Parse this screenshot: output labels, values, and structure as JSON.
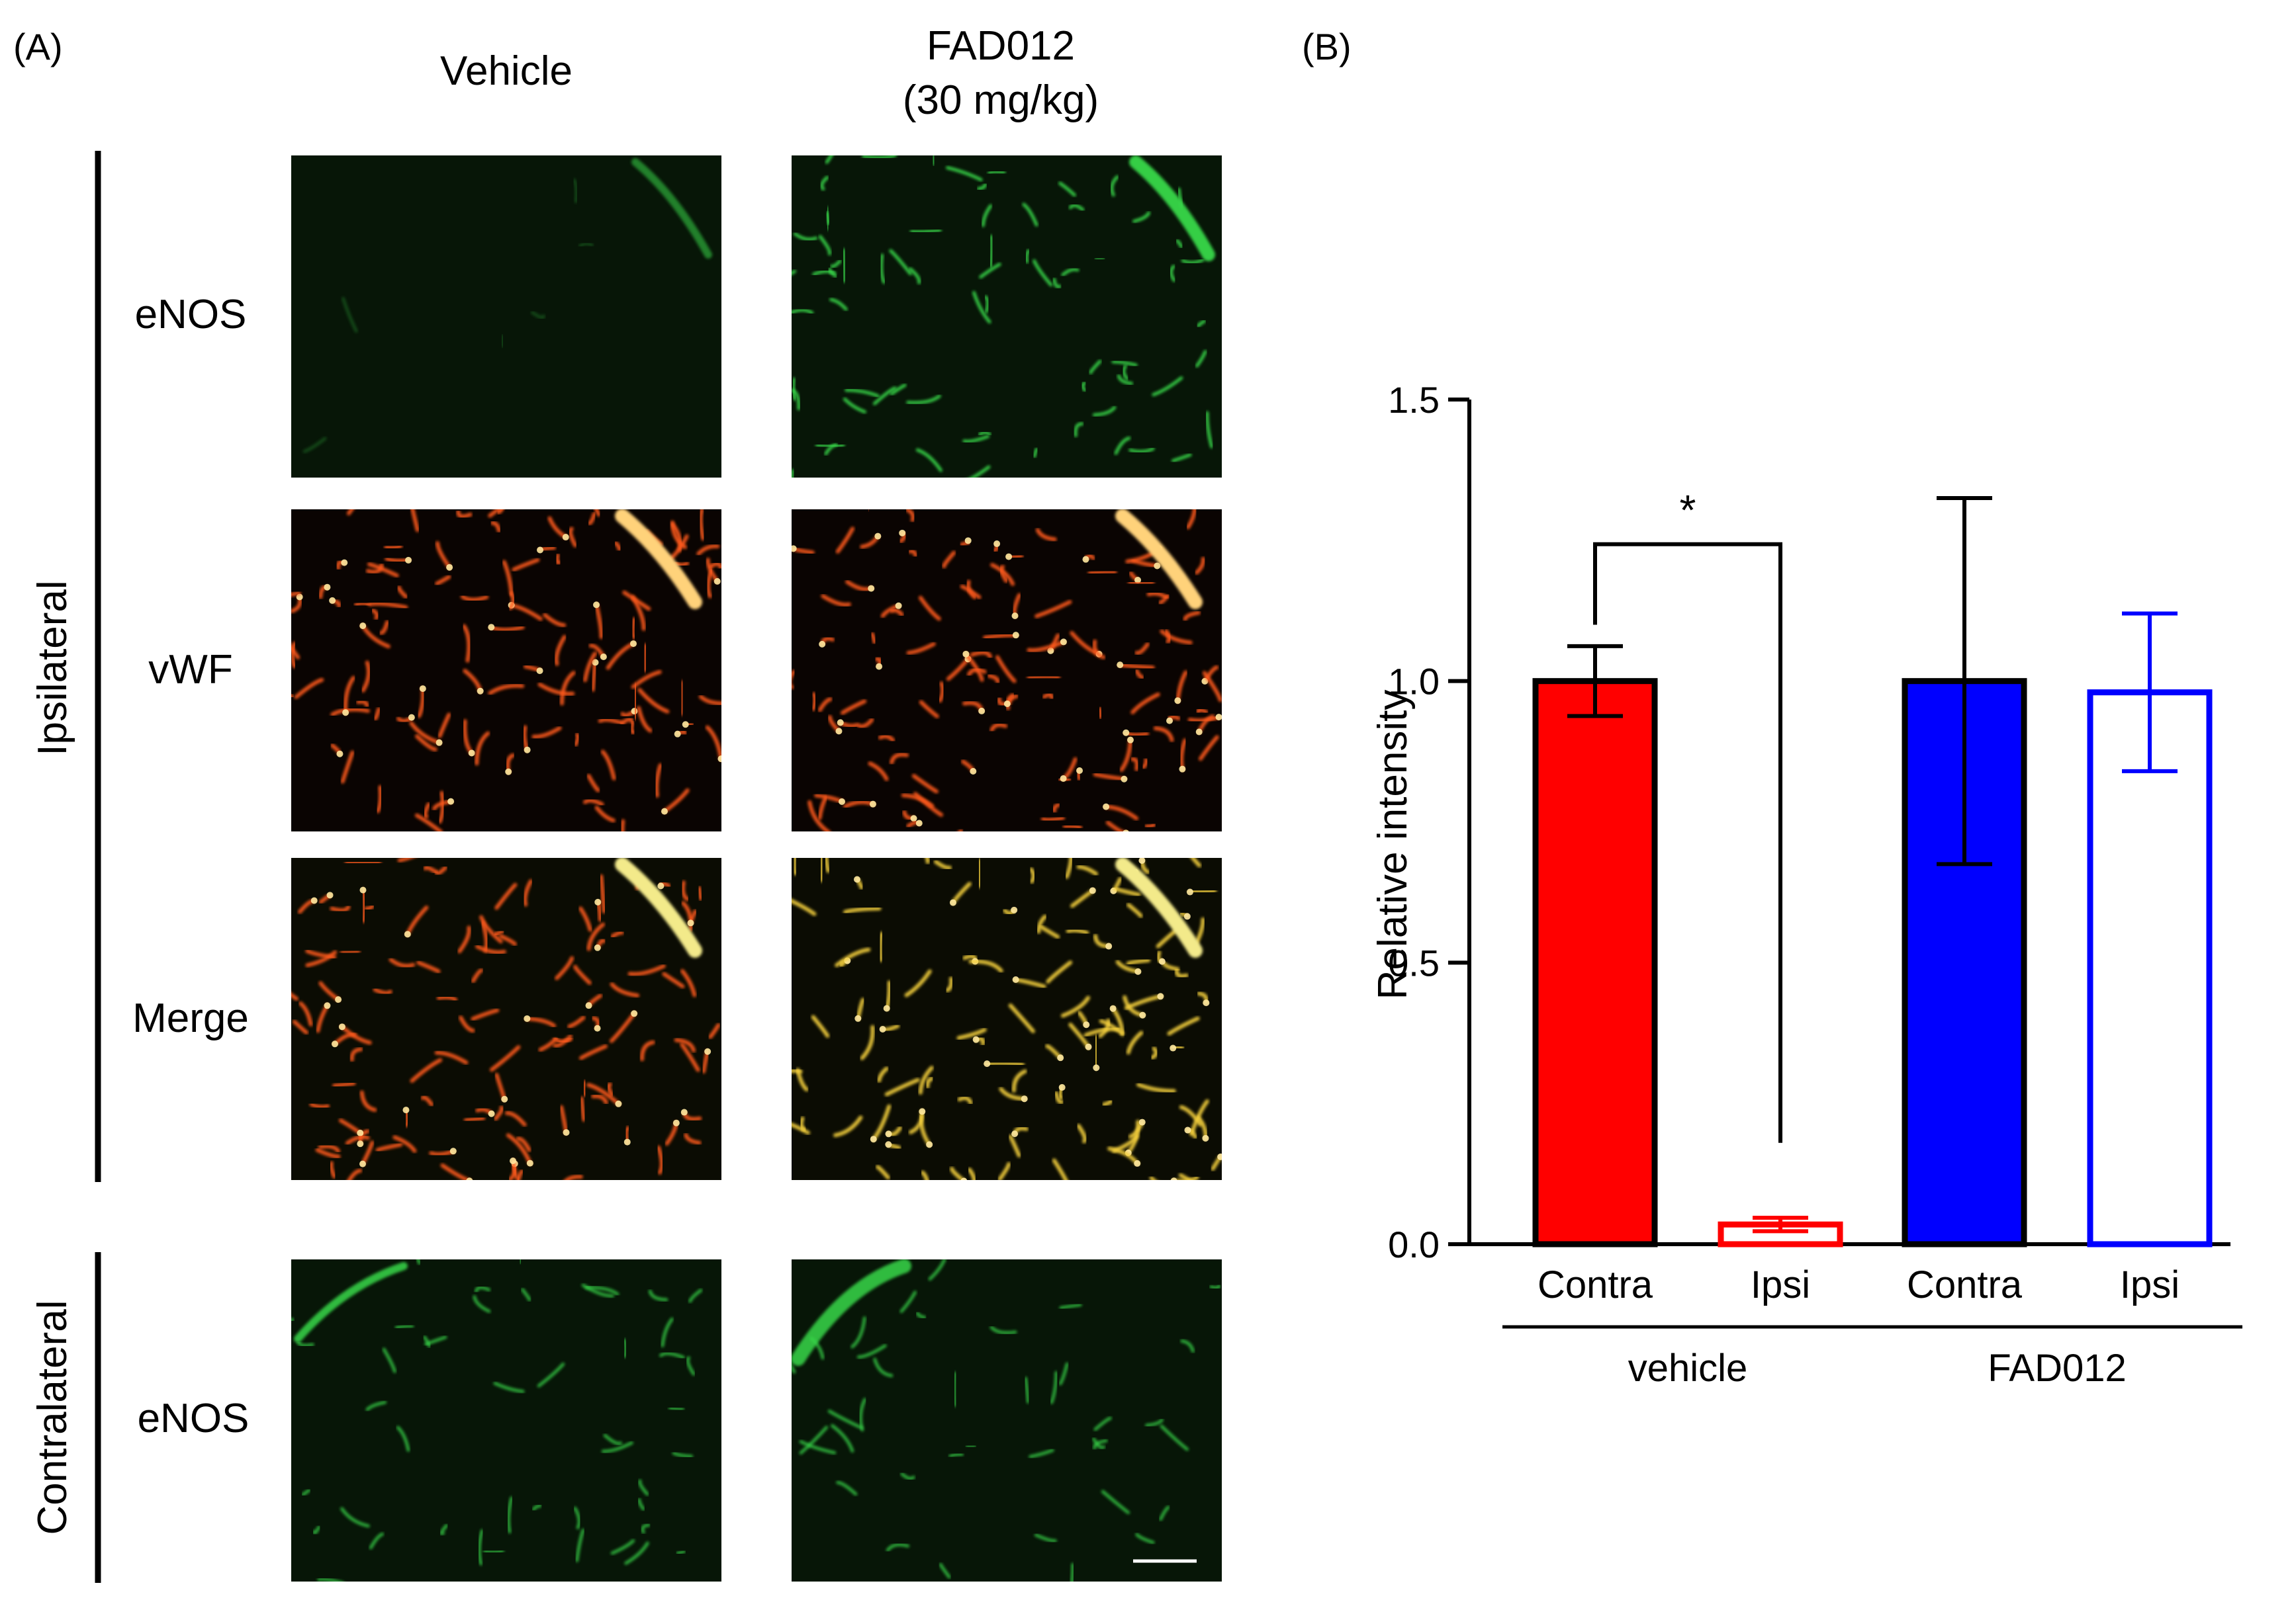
{
  "panel_a": {
    "label": "(A)",
    "columns": [
      "Vehicle",
      "FAD012",
      "(30 mg/kg)"
    ],
    "group_ipsi": "Ipsilateral",
    "group_contra": "Contralateral",
    "rows": [
      "eNOS",
      "vWF",
      "Merge",
      "eNOS"
    ],
    "colors": {
      "enos": "#39d84a",
      "vwf": "#ff5a1e",
      "merge": "#f7d23e"
    }
  },
  "panel_b": {
    "label": "(B)"
  },
  "chart_data": {
    "type": "bar",
    "ylabel": "Relative intensity",
    "ylim": [
      0,
      1.5
    ],
    "yticks": [
      "0.0",
      "0.5",
      "1.0",
      "1.5"
    ],
    "categories": [
      "Contra",
      "Ipsi",
      "Contra",
      "Ipsi"
    ],
    "groups": [
      "vehicle",
      "FAD012"
    ],
    "values": [
      1.0,
      0.035,
      1.0,
      0.98
    ],
    "errors": [
      0.062,
      0.012,
      0.325,
      0.14
    ],
    "fills": [
      "#ff0000",
      "#ffffff",
      "#0000ff",
      "#ffffff"
    ],
    "strokes": [
      "#000000",
      "#ff0000",
      "#000000",
      "#0000ff"
    ],
    "significance": "*"
  }
}
